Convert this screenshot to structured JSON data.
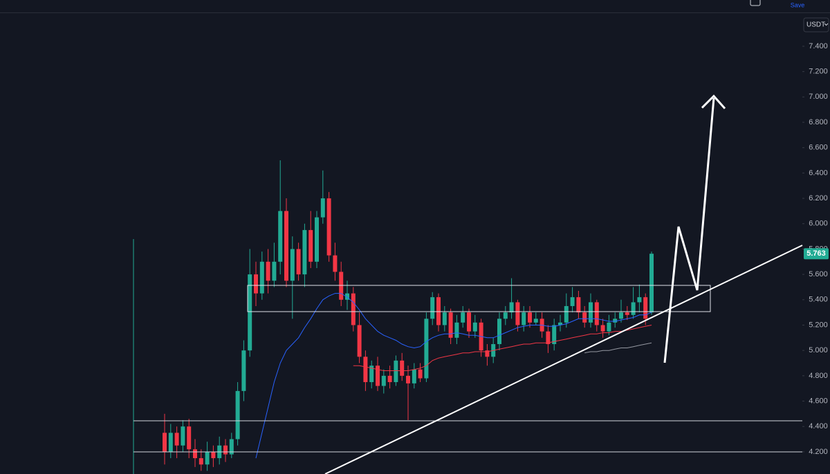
{
  "chart_data": {
    "type": "candlestick",
    "header_button": "Save",
    "currency": "USDT",
    "up_color": "#22ab94",
    "down_color": "#f23645",
    "ylim": [
      4.025,
      7.765
    ],
    "yticks": [
      {
        "value": 4.2,
        "label": "4.200"
      },
      {
        "value": 4.4,
        "label": "4.400"
      },
      {
        "value": 4.6,
        "label": "4.600"
      },
      {
        "value": 4.8,
        "label": "4.800"
      },
      {
        "value": 5.0,
        "label": "5.000"
      },
      {
        "value": 5.2,
        "label": "5.200"
      },
      {
        "value": 5.4,
        "label": "5.400"
      },
      {
        "value": 5.6,
        "label": "5.600"
      },
      {
        "value": 5.8,
        "label": "5.800"
      },
      {
        "value": 6.0,
        "label": "6.000"
      },
      {
        "value": 6.2,
        "label": "6.200"
      },
      {
        "value": 6.4,
        "label": "6.400"
      },
      {
        "value": 6.6,
        "label": "6.600"
      },
      {
        "value": 6.8,
        "label": "6.800"
      },
      {
        "value": 7.0,
        "label": "7.000"
      },
      {
        "value": 7.2,
        "label": "7.200"
      },
      {
        "value": 7.4,
        "label": "7.400"
      }
    ],
    "open": [
      4.35,
      4.2,
      4.35,
      4.25,
      4.4,
      4.22,
      4.15,
      4.1,
      4.2,
      4.15,
      4.25,
      4.18,
      4.3,
      4.68,
      5.0,
      5.6,
      5.45,
      5.7,
      5.55,
      5.7,
      6.1,
      5.55,
      5.8,
      5.6,
      5.95,
      5.7,
      6.05,
      6.2,
      5.75,
      5.62,
      5.4,
      5.45,
      5.2,
      4.95,
      4.75,
      4.88,
      4.72,
      4.8,
      4.75,
      4.92,
      4.8,
      4.74,
      4.85,
      4.78,
      5.25,
      5.42,
      5.2,
      5.3,
      5.1,
      5.22,
      5.3,
      5.15,
      5.22,
      5.0,
      4.95,
      5.05,
      5.25,
      5.3,
      5.38,
      5.2,
      5.3,
      5.22,
      5.25,
      5.15,
      5.05,
      5.2,
      5.22,
      5.35,
      5.42,
      5.3,
      5.22,
      5.38,
      5.2,
      5.15,
      5.22,
      5.25,
      5.3,
      5.28,
      5.38,
      5.42,
      5.3
    ],
    "high": [
      4.5,
      4.42,
      4.4,
      4.45,
      4.46,
      4.3,
      4.22,
      4.28,
      4.25,
      4.32,
      4.3,
      4.35,
      4.75,
      5.08,
      5.8,
      5.7,
      5.78,
      5.8,
      5.85,
      6.5,
      6.2,
      5.9,
      5.85,
      6.0,
      6.1,
      6.1,
      6.42,
      6.25,
      5.85,
      5.7,
      5.55,
      5.5,
      5.3,
      5.0,
      4.92,
      4.95,
      4.85,
      4.88,
      4.96,
      4.98,
      4.88,
      4.9,
      4.9,
      5.3,
      5.46,
      5.45,
      5.35,
      5.33,
      5.28,
      5.35,
      5.33,
      5.28,
      5.25,
      5.05,
      5.1,
      5.3,
      5.35,
      5.57,
      5.4,
      5.35,
      5.35,
      5.3,
      5.3,
      5.2,
      5.25,
      5.28,
      5.45,
      5.5,
      5.47,
      5.35,
      5.45,
      5.4,
      5.25,
      5.28,
      5.3,
      5.4,
      5.35,
      5.5,
      5.52,
      5.45,
      5.78
    ],
    "low": [
      4.1,
      4.15,
      4.15,
      4.2,
      4.15,
      4.08,
      4.05,
      4.05,
      4.08,
      4.1,
      4.12,
      4.15,
      4.25,
      4.6,
      4.95,
      5.35,
      5.4,
      5.45,
      5.5,
      5.6,
      5.5,
      5.25,
      5.55,
      5.5,
      5.65,
      5.65,
      6.0,
      5.7,
      5.55,
      5.35,
      5.32,
      5.15,
      4.9,
      4.68,
      4.7,
      4.68,
      4.66,
      4.7,
      4.72,
      4.76,
      4.45,
      4.7,
      4.75,
      4.75,
      5.2,
      5.15,
      5.15,
      5.05,
      5.05,
      5.18,
      5.1,
      5.1,
      4.95,
      4.88,
      4.9,
      5.0,
      5.2,
      5.25,
      5.15,
      5.15,
      5.18,
      5.2,
      5.1,
      4.98,
      5.0,
      5.15,
      5.18,
      5.3,
      5.25,
      5.18,
      5.18,
      5.15,
      5.1,
      5.12,
      5.18,
      5.22,
      5.24,
      5.25,
      5.3,
      5.2,
      5.28
    ],
    "close": [
      4.2,
      4.35,
      4.25,
      4.4,
      4.22,
      4.15,
      4.1,
      4.2,
      4.15,
      4.25,
      4.18,
      4.3,
      4.68,
      5.0,
      5.6,
      5.45,
      5.7,
      5.55,
      5.7,
      6.1,
      5.55,
      5.8,
      5.6,
      5.95,
      5.7,
      6.05,
      6.2,
      5.75,
      5.62,
      5.4,
      5.45,
      5.2,
      4.95,
      4.75,
      4.88,
      4.72,
      4.8,
      4.75,
      4.92,
      4.8,
      4.74,
      4.85,
      4.78,
      5.25,
      5.42,
      5.2,
      5.3,
      5.1,
      5.22,
      5.3,
      5.15,
      5.22,
      5.0,
      4.95,
      5.05,
      5.25,
      5.3,
      5.38,
      5.2,
      5.3,
      5.22,
      5.25,
      5.15,
      5.05,
      5.2,
      5.22,
      5.35,
      5.42,
      5.3,
      5.22,
      5.38,
      5.2,
      5.15,
      5.22,
      5.25,
      5.3,
      5.28,
      5.38,
      5.42,
      5.25,
      5.763
    ],
    "series": [
      {
        "color": "#2962ff",
        "values": [
          null,
          null,
          null,
          null,
          null,
          null,
          null,
          null,
          null,
          null,
          null,
          null,
          null,
          null,
          null,
          4.15,
          4.35,
          4.55,
          4.75,
          4.9,
          5.0,
          5.05,
          5.1,
          5.18,
          5.25,
          5.33,
          5.4,
          5.43,
          5.45,
          5.45,
          5.42,
          5.38,
          5.32,
          5.25,
          5.2,
          5.15,
          5.12,
          5.1,
          5.08,
          5.05,
          5.03,
          5.02,
          5.03,
          5.07,
          5.1,
          5.12,
          5.13,
          5.13,
          5.14,
          5.13,
          5.12,
          5.12,
          5.11,
          5.1,
          5.1,
          5.12,
          5.14,
          5.16,
          5.18,
          5.19,
          5.2,
          5.2,
          5.2,
          5.19,
          5.19,
          5.2,
          5.21,
          5.23,
          5.25,
          5.25,
          5.25,
          5.25,
          5.24,
          5.23,
          5.23,
          5.24,
          5.25,
          5.26,
          5.28,
          5.28,
          5.3
        ]
      },
      {
        "color": "#f23645",
        "values": [
          null,
          null,
          null,
          null,
          null,
          null,
          null,
          null,
          null,
          null,
          null,
          null,
          null,
          null,
          null,
          null,
          null,
          null,
          null,
          null,
          null,
          null,
          null,
          null,
          null,
          null,
          null,
          null,
          null,
          null,
          null,
          4.88,
          4.88,
          4.87,
          4.86,
          4.85,
          4.84,
          4.84,
          4.84,
          4.84,
          4.84,
          4.85,
          4.86,
          4.88,
          4.92,
          4.94,
          4.95,
          4.96,
          4.97,
          4.98,
          4.98,
          4.99,
          4.99,
          4.99,
          5.0,
          5.01,
          5.02,
          5.03,
          5.04,
          5.05,
          5.05,
          5.06,
          5.06,
          5.06,
          5.07,
          5.08,
          5.09,
          5.1,
          5.11,
          5.12,
          5.13,
          5.13,
          5.14,
          5.14,
          5.15,
          5.15,
          5.16,
          5.17,
          5.18,
          5.19,
          5.2
        ]
      },
      {
        "color": "#9598a1",
        "values": [
          null,
          null,
          null,
          null,
          null,
          null,
          null,
          null,
          null,
          null,
          null,
          null,
          null,
          null,
          null,
          null,
          null,
          null,
          null,
          null,
          null,
          null,
          null,
          null,
          null,
          null,
          null,
          null,
          null,
          null,
          null,
          null,
          null,
          null,
          null,
          null,
          null,
          null,
          null,
          null,
          null,
          null,
          null,
          null,
          null,
          null,
          null,
          null,
          null,
          null,
          null,
          null,
          null,
          null,
          null,
          null,
          null,
          null,
          null,
          null,
          null,
          null,
          null,
          null,
          null,
          null,
          null,
          null,
          null,
          4.98,
          4.99,
          4.99,
          5.0,
          5.0,
          5.01,
          5.02,
          5.02,
          5.03,
          5.04,
          5.05,
          5.06
        ]
      }
    ]
  }
}
